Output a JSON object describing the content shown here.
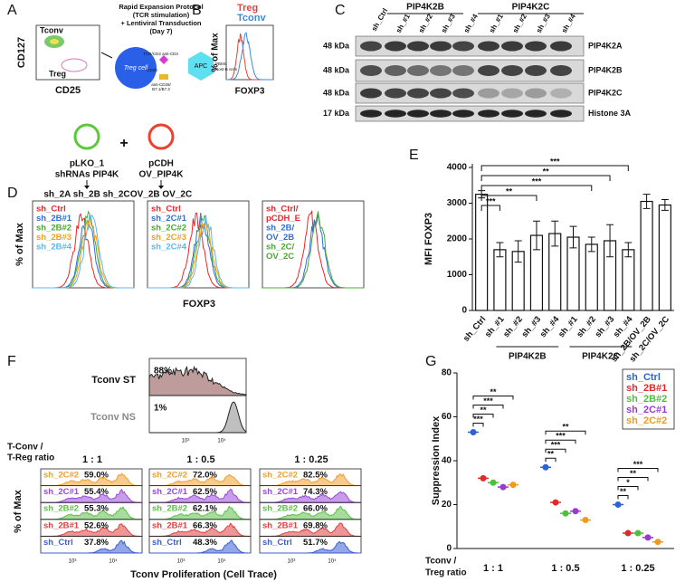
{
  "panel_letters": [
    "A",
    "B",
    "C",
    "D",
    "E",
    "F",
    "G"
  ],
  "panel_a": {
    "gate_tconv": "Tconv",
    "gate_treg": "Treg",
    "y_label": "CD127",
    "x_label": "CD25",
    "protocol": [
      "Rapid Expansion Protocol",
      "(TCR stimulation)",
      "+ Lentiviral Transduction",
      "(Day 7)"
    ],
    "treg_cell": "Treg cell",
    "apc": "APC",
    "receptors": [
      "TCR/CD3",
      "anti-CD3",
      "CD28",
      "anti-CD28/",
      "B7.1/B7.2",
      "PBMC",
      "Rost-B cells"
    ],
    "plus": "+",
    "vector_1": {
      "name": "pLKO_1",
      "insert": "shRNAs PIP4K",
      "products": "sh_2A sh_2B sh_2C",
      "color": "#5ec83c"
    },
    "vector_2": {
      "name": "pCDH",
      "insert": "OV_PIP4K",
      "products": "OV_2B OV_2C",
      "color": "#e8432e"
    }
  },
  "panel_b": {
    "legend": [
      {
        "name": "Treg",
        "color": "#e8433a"
      },
      {
        "name": "Tconv",
        "color": "#3a8ae0"
      }
    ],
    "y_label": "% of Max",
    "x_label": "FOXP3"
  },
  "panel_c": {
    "control": "sh_Ctrl",
    "groups": [
      "PIP4K2B",
      "PIP4K2C"
    ],
    "lanes": [
      "sh_#1",
      "sh_#2",
      "sh_#3",
      "sh_#4",
      "sh_#1",
      "sh_#2",
      "sh_#3",
      "sh_#4"
    ],
    "sizes": [
      "48 kDa",
      "48 kDa",
      "48 kDa",
      "17 kDa"
    ],
    "proteins": [
      "PIP4K2A",
      "PIP4K2B",
      "PIP4K2C",
      "Histone 3A"
    ]
  },
  "panel_d": {
    "overlays": [
      {
        "names": [
          [
            "sh_Ctrl"
          ],
          [
            "sh_2B#1"
          ],
          [
            "sh_2B#2"
          ],
          [
            "sh_2B#3"
          ],
          [
            "sh_2B#4"
          ]
        ],
        "colors": [
          "#e8262a",
          "#2f6fd0",
          "#4aa832",
          "#f0a020",
          "#5bb8f0"
        ]
      },
      {
        "names": [
          [
            "sh_Ctrl"
          ],
          [
            "sh_2C#1"
          ],
          [
            "sh_2C#2"
          ],
          [
            "sh_2C#3"
          ],
          [
            "sh_2C#4"
          ]
        ],
        "colors": [
          "#e8262a",
          "#2f6fd0",
          "#4aa832",
          "#f0a020",
          "#5bb8f0"
        ]
      },
      {
        "names": [
          [
            "sh_Ctrl/",
            "pCDH_E"
          ],
          [
            "sh_2B/",
            "OV_2B"
          ],
          [
            "sh_2C/",
            "OV_2C"
          ]
        ],
        "colors": [
          "#e8262a",
          "#2f6fd0",
          "#4aa832"
        ]
      }
    ],
    "y_label": "% of Max",
    "x_label": "FOXP3"
  },
  "panel_f": {
    "ctrl_labels": [
      "Tconv ST",
      "Tconv NS"
    ],
    "ctrl_percents": [
      "88%",
      "1%"
    ],
    "ctrl_colors": [
      "#8b4a4a",
      "#8a8a8a"
    ],
    "ticks": [
      "10³",
      "10⁴"
    ],
    "ratio_label": [
      "T-Conv /",
      "T-Reg ratio"
    ],
    "ratios": [
      "1 : 1",
      "1 : 0.5",
      "1 : 0.25"
    ],
    "samples": [
      "sh_2C#2",
      "sh_2C#1",
      "sh_2B#2",
      "sh_2B#1",
      "sh_Ctrl"
    ],
    "sample_colors": [
      "#f0a030",
      "#9a4ad8",
      "#5cc04a",
      "#e04040",
      "#3a5fd0"
    ],
    "percents": [
      [
        "59.0%",
        "55.4%",
        "55.3%",
        "52.6%",
        "37.8%"
      ],
      [
        "72.0%",
        "62.5%",
        "62.1%",
        "66.3%",
        "48.3%"
      ],
      [
        "82.5%",
        "74.3%",
        "66.0%",
        "69.8%",
        "51.7%"
      ]
    ],
    "y_label": "% of Max",
    "x_label": "Tconv Proliferation (Cell Trace)"
  },
  "chart_data": [
    {
      "type": "bar",
      "categories": [
        "sh_Ctrl",
        "sh_#1",
        "sh_#2",
        "sh_#3",
        "sh_#4",
        "sh_#1",
        "sh_#2",
        "sh_#3",
        "sh_#4",
        "sh_2B/OV_2B",
        "sh_2C/OV_2C"
      ],
      "values": [
        3250,
        1700,
        1650,
        2100,
        2150,
        2050,
        1850,
        1950,
        1700,
        3050,
        2950
      ],
      "errors": [
        100,
        200,
        300,
        400,
        350,
        300,
        200,
        450,
        200,
        200,
        150
      ],
      "color": "#ffffff",
      "ylim": [
        0,
        4000
      ],
      "yticks": [
        0,
        1000,
        2000,
        3000,
        4000
      ],
      "y_label": "MFI FOXP3",
      "groups": [
        "PIP4K2B",
        "PIP4K2C"
      ],
      "annotations": [
        "***",
        "**",
        "***",
        "**",
        "***"
      ]
    },
    {
      "type": "scatter",
      "categories": [
        "1 : 1",
        "1 : 0.5",
        "1 : 0.25"
      ],
      "series": [
        {
          "name": "sh_Ctrl",
          "color": "#2b62d8",
          "values": [
            53,
            37,
            20
          ]
        },
        {
          "name": "sh_2B#1",
          "color": "#e02a2a",
          "values": [
            32,
            21,
            7
          ]
        },
        {
          "name": "sh_2B#2",
          "color": "#4cc03c",
          "values": [
            30,
            16,
            7
          ]
        },
        {
          "name": "sh_2C#1",
          "color": "#9a3ad0",
          "values": [
            28,
            17,
            5
          ]
        },
        {
          "name": "sh_2C#2",
          "color": "#f09a20",
          "values": [
            29,
            13,
            3
          ]
        }
      ],
      "ylim": [
        0,
        80
      ],
      "yticks": [
        0,
        20,
        40,
        60,
        80
      ],
      "y_label": "Suppression Index",
      "x_label": [
        "Tconv /",
        "Treg ratio"
      ],
      "legend": "top-right",
      "annotations": [
        [
          "***",
          "**",
          "***",
          "**"
        ],
        [
          "**",
          "***",
          "***",
          "**"
        ],
        [
          "**",
          "*",
          "**",
          "***"
        ]
      ]
    }
  ]
}
